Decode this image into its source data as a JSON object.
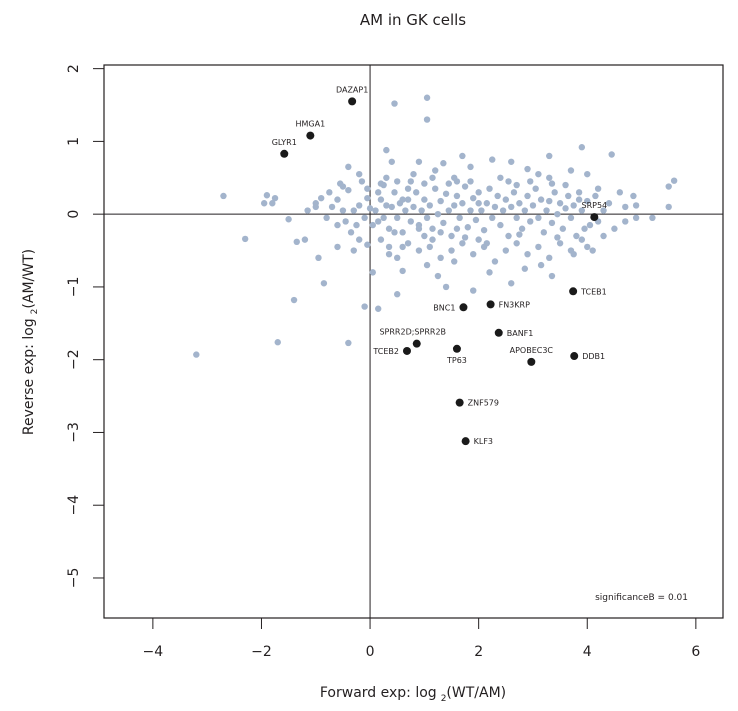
{
  "chart_data": {
    "type": "scatter",
    "title": "AM in GK cells",
    "xlabel": {
      "prefix": "Forward exp: log",
      "subscript": "2",
      "suffix": "(WT/AM)"
    },
    "ylabel": {
      "prefix": "Reverse exp: log",
      "subscript": "2",
      "suffix": "(AM/WT)"
    },
    "xlim": [
      -4.9,
      6.5
    ],
    "ylim": [
      -5.55,
      2.05
    ],
    "xticks": [
      -4,
      -2,
      0,
      2,
      4,
      6
    ],
    "xtick_labels": [
      "−4",
      "−2",
      "0",
      "2",
      "4",
      "6"
    ],
    "yticks": [
      2,
      1,
      0,
      -1,
      -2,
      -3,
      -4,
      -5
    ],
    "ytick_labels": [
      "2",
      "1",
      "0",
      "−1",
      "−2",
      "−3",
      "−4",
      "−5"
    ],
    "reference_lines": {
      "x": 0,
      "y": 0
    },
    "grid": false,
    "annotation": "significanceB = 0.01",
    "annotation_position": "bottom-right",
    "colors": {
      "background_points": "#a3b4cc",
      "significant_points": "#1a1a1a",
      "axis": "#231f20"
    },
    "significant_points": [
      {
        "label": "DAZAP1",
        "x": -0.33,
        "y": 1.55,
        "label_pos": "above"
      },
      {
        "label": "HMGA1",
        "x": -1.1,
        "y": 1.08,
        "label_pos": "above"
      },
      {
        "label": "GLYR1",
        "x": -1.58,
        "y": 0.83,
        "label_pos": "above"
      },
      {
        "label": "SRP54",
        "x": 4.13,
        "y": -0.04,
        "label_pos": "above"
      },
      {
        "label": "TCEB1",
        "x": 3.74,
        "y": -1.06,
        "label_pos": "right"
      },
      {
        "label": "BNC1",
        "x": 1.72,
        "y": -1.28,
        "label_pos": "left"
      },
      {
        "label": "FN3KRP",
        "x": 2.22,
        "y": -1.24,
        "label_pos": "right"
      },
      {
        "label": "BANF1",
        "x": 2.37,
        "y": -1.63,
        "label_pos": "right"
      },
      {
        "label": "SPRR2D;SPRR2B",
        "x": 0.86,
        "y": -1.78,
        "label_pos": "above-left"
      },
      {
        "label": "TCEB2",
        "x": 0.68,
        "y": -1.88,
        "label_pos": "left"
      },
      {
        "label": "TP63",
        "x": 1.6,
        "y": -1.85,
        "label_pos": "below"
      },
      {
        "label": "APOBEC3C",
        "x": 2.97,
        "y": -2.03,
        "label_pos": "above"
      },
      {
        "label": "DDB1",
        "x": 3.76,
        "y": -1.95,
        "label_pos": "right"
      },
      {
        "label": "ZNF579",
        "x": 1.65,
        "y": -2.59,
        "label_pos": "right"
      },
      {
        "label": "KLF3",
        "x": 1.76,
        "y": -3.12,
        "label_pos": "right"
      }
    ],
    "background_points": [
      [
        -3.2,
        -1.93
      ],
      [
        -2.7,
        0.25
      ],
      [
        -2.3,
        -0.34
      ],
      [
        -1.9,
        0.26
      ],
      [
        -1.95,
        0.15
      ],
      [
        -1.8,
        0.15
      ],
      [
        -1.75,
        0.22
      ],
      [
        -1.7,
        -1.76
      ],
      [
        -1.4,
        -1.18
      ],
      [
        -1.5,
        -0.07
      ],
      [
        -1.35,
        -0.38
      ],
      [
        -1.2,
        -0.35
      ],
      [
        -1.15,
        0.05
      ],
      [
        -1.0,
        0.1
      ],
      [
        -0.85,
        -0.95
      ],
      [
        -0.95,
        -0.6
      ],
      [
        -0.6,
        -0.45
      ],
      [
        -0.4,
        -1.77
      ],
      [
        -0.1,
        -1.27
      ],
      [
        -1.0,
        0.15
      ],
      [
        -0.9,
        0.22
      ],
      [
        -0.75,
        0.3
      ],
      [
        -0.6,
        0.2
      ],
      [
        -0.55,
        0.42
      ],
      [
        -0.4,
        0.33
      ],
      [
        -0.3,
        0.05
      ],
      [
        -0.2,
        0.12
      ],
      [
        -0.15,
        0.45
      ],
      [
        -0.05,
        0.22
      ],
      [
        -0.7,
        0.1
      ],
      [
        -0.5,
        0.05
      ],
      [
        -0.45,
        -0.1
      ],
      [
        -0.35,
        -0.25
      ],
      [
        -0.25,
        -0.15
      ],
      [
        -0.1,
        -0.05
      ],
      [
        -0.05,
        0.35
      ],
      [
        -0.6,
        -0.15
      ],
      [
        -0.8,
        -0.05
      ],
      [
        -0.2,
        -0.35
      ],
      [
        -0.3,
        -0.5
      ],
      [
        -0.05,
        -0.42
      ],
      [
        -0.4,
        0.65
      ],
      [
        -0.2,
        0.55
      ],
      [
        0.0,
        0.08
      ],
      [
        -0.5,
        0.38
      ],
      [
        0.45,
        1.52
      ],
      [
        1.05,
        1.6
      ],
      [
        1.05,
        1.3
      ],
      [
        0.3,
        0.88
      ],
      [
        0.2,
        0.42
      ],
      [
        0.5,
        0.45
      ],
      [
        0.6,
        0.2
      ],
      [
        0.7,
        0.35
      ],
      [
        1.15,
        0.5
      ],
      [
        1.55,
        0.5
      ],
      [
        1.85,
        0.65
      ],
      [
        2.0,
        0.15
      ],
      [
        2.6,
        0.72
      ],
      [
        3.3,
        0.8
      ],
      [
        3.85,
        0.3
      ],
      [
        4.45,
        0.82
      ],
      [
        3.9,
        0.92
      ],
      [
        3.3,
        0.5
      ],
      [
        4.3,
        0.05
      ],
      [
        4.6,
        0.3
      ],
      [
        4.7,
        0.1
      ],
      [
        4.85,
        0.25
      ],
      [
        4.9,
        0.12
      ],
      [
        5.2,
        -0.05
      ],
      [
        5.5,
        0.38
      ],
      [
        5.5,
        0.1
      ],
      [
        5.6,
        0.46
      ],
      [
        4.9,
        -0.05
      ],
      [
        0.1,
        0.05
      ],
      [
        0.15,
        -0.1
      ],
      [
        0.2,
        0.2
      ],
      [
        0.25,
        -0.05
      ],
      [
        0.3,
        0.12
      ],
      [
        0.35,
        -0.2
      ],
      [
        0.4,
        0.1
      ],
      [
        0.45,
        0.3
      ],
      [
        0.5,
        -0.05
      ],
      [
        0.55,
        0.15
      ],
      [
        0.6,
        -0.25
      ],
      [
        0.65,
        0.05
      ],
      [
        0.7,
        0.2
      ],
      [
        0.75,
        -0.1
      ],
      [
        0.8,
        0.1
      ],
      [
        0.85,
        0.3
      ],
      [
        0.9,
        -0.15
      ],
      [
        0.95,
        0.05
      ],
      [
        1.0,
        0.2
      ],
      [
        1.05,
        -0.05
      ],
      [
        1.1,
        0.12
      ],
      [
        1.15,
        -0.2
      ],
      [
        1.2,
        0.35
      ],
      [
        1.25,
        0.0
      ],
      [
        1.3,
        0.18
      ],
      [
        1.35,
        -0.12
      ],
      [
        1.4,
        0.28
      ],
      [
        1.45,
        0.05
      ],
      [
        1.5,
        -0.3
      ],
      [
        1.55,
        0.12
      ],
      [
        1.6,
        0.25
      ],
      [
        1.65,
        -0.05
      ],
      [
        1.7,
        0.15
      ],
      [
        1.75,
        0.38
      ],
      [
        1.8,
        -0.18
      ],
      [
        1.85,
        0.05
      ],
      [
        1.9,
        0.22
      ],
      [
        1.95,
        -0.08
      ],
      [
        2.0,
        0.3
      ],
      [
        2.05,
        0.05
      ],
      [
        2.1,
        -0.22
      ],
      [
        2.15,
        0.15
      ],
      [
        2.2,
        0.35
      ],
      [
        2.25,
        -0.05
      ],
      [
        2.3,
        0.1
      ],
      [
        2.35,
        0.25
      ],
      [
        2.4,
        -0.15
      ],
      [
        2.45,
        0.05
      ],
      [
        2.5,
        0.2
      ],
      [
        2.55,
        -0.3
      ],
      [
        2.6,
        0.1
      ],
      [
        2.65,
        0.3
      ],
      [
        2.7,
        -0.05
      ],
      [
        2.75,
        0.15
      ],
      [
        2.8,
        -0.2
      ],
      [
        2.85,
        0.05
      ],
      [
        2.9,
        0.25
      ],
      [
        2.95,
        -0.1
      ],
      [
        3.0,
        0.12
      ],
      [
        3.05,
        0.35
      ],
      [
        3.1,
        -0.05
      ],
      [
        3.15,
        0.2
      ],
      [
        3.2,
        -0.25
      ],
      [
        3.25,
        0.05
      ],
      [
        3.3,
        0.18
      ],
      [
        3.35,
        -0.12
      ],
      [
        3.4,
        0.3
      ],
      [
        3.45,
        0.0
      ],
      [
        3.5,
        0.15
      ],
      [
        3.55,
        -0.2
      ],
      [
        3.6,
        0.08
      ],
      [
        3.65,
        0.25
      ],
      [
        3.7,
        -0.05
      ],
      [
        3.75,
        0.12
      ],
      [
        3.8,
        -0.3
      ],
      [
        3.9,
        0.05
      ],
      [
        4.0,
        0.18
      ],
      [
        4.05,
        -0.15
      ],
      [
        0.2,
        -0.35
      ],
      [
        0.35,
        -0.45
      ],
      [
        0.5,
        -0.6
      ],
      [
        0.7,
        -0.4
      ],
      [
        0.9,
        -0.5
      ],
      [
        1.1,
        -0.45
      ],
      [
        1.3,
        -0.6
      ],
      [
        1.5,
        -0.5
      ],
      [
        1.7,
        -0.4
      ],
      [
        1.9,
        -0.55
      ],
      [
        2.1,
        -0.45
      ],
      [
        2.3,
        -0.65
      ],
      [
        2.5,
        -0.5
      ],
      [
        2.7,
        -0.4
      ],
      [
        2.9,
        -0.55
      ],
      [
        3.1,
        -0.45
      ],
      [
        3.3,
        -0.6
      ],
      [
        3.5,
        -0.4
      ],
      [
        3.7,
        -0.5
      ],
      [
        3.9,
        -0.35
      ],
      [
        4.1,
        -0.5
      ],
      [
        4.3,
        -0.3
      ],
      [
        0.6,
        -0.78
      ],
      [
        1.25,
        -0.85
      ],
      [
        1.55,
        -0.65
      ],
      [
        1.4,
        -1.0
      ],
      [
        0.15,
        -1.3
      ],
      [
        0.5,
        -1.1
      ],
      [
        1.9,
        -1.05
      ],
      [
        2.6,
        -0.95
      ],
      [
        2.85,
        -0.75
      ],
      [
        3.35,
        -0.85
      ],
      [
        3.15,
        -0.7
      ],
      [
        0.9,
        -0.2
      ],
      [
        1.0,
        -0.3
      ],
      [
        2.0,
        -0.35
      ],
      [
        1.3,
        -0.25
      ],
      [
        1.6,
        -0.2
      ],
      [
        1.75,
        -0.32
      ],
      [
        0.05,
        -0.8
      ],
      [
        3.75,
        -0.55
      ],
      [
        4.0,
        -0.45
      ],
      [
        2.2,
        -0.8
      ],
      [
        1.05,
        -0.7
      ],
      [
        0.35,
        -0.55
      ],
      [
        0.3,
        0.5
      ],
      [
        0.8,
        0.55
      ],
      [
        1.2,
        0.6
      ],
      [
        1.6,
        0.45
      ],
      [
        2.4,
        0.5
      ],
      [
        2.7,
        0.4
      ],
      [
        3.1,
        0.55
      ],
      [
        3.6,
        0.4
      ],
      [
        4.0,
        0.55
      ],
      [
        4.2,
        0.35
      ],
      [
        0.9,
        0.72
      ],
      [
        1.35,
        0.7
      ],
      [
        2.25,
        0.75
      ],
      [
        2.9,
        0.62
      ],
      [
        3.7,
        0.6
      ],
      [
        0.4,
        0.72
      ],
      [
        1.7,
        0.8
      ],
      [
        0.15,
        0.3
      ],
      [
        0.45,
        -0.25
      ],
      [
        0.75,
        0.45
      ],
      [
        1.15,
        -0.35
      ],
      [
        1.45,
        0.42
      ],
      [
        1.85,
        0.45
      ],
      [
        2.15,
        -0.4
      ],
      [
        2.55,
        0.45
      ],
      [
        2.95,
        0.45
      ],
      [
        3.35,
        0.42
      ],
      [
        3.85,
        0.2
      ],
      [
        4.15,
        0.25
      ],
      [
        0.05,
        -0.15
      ],
      [
        0.25,
        0.4
      ],
      [
        0.6,
        -0.45
      ],
      [
        1.0,
        0.42
      ],
      [
        2.75,
        -0.28
      ],
      [
        3.45,
        -0.32
      ],
      [
        3.95,
        -0.2
      ],
      [
        4.2,
        -0.1
      ],
      [
        4.4,
        0.15
      ],
      [
        4.5,
        -0.2
      ],
      [
        4.7,
        -0.1
      ]
    ]
  }
}
